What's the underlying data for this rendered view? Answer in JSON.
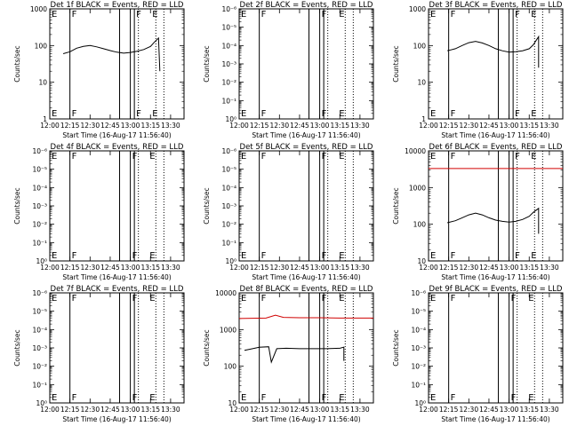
{
  "chart_data": [
    {
      "type": "line",
      "title": "Det 1f BLACK = Events, RED = LLD",
      "ylabel": "Counts/sec",
      "xlabel": "Start Time (16-Aug-17 11:56:40)",
      "xticks": [
        "12:00",
        "12:15",
        "12:30",
        "12:45",
        "13:00",
        "13:15",
        "13:30"
      ],
      "x_range": [
        "12:00",
        "13:40"
      ],
      "ylim": [
        1,
        1000
      ],
      "ytick_labels": [
        "1",
        "10",
        "100",
        "1000"
      ],
      "log_scale": true,
      "grid": false,
      "solid_lines": [
        "12:15",
        "12:52",
        "13:00",
        "13:03"
      ],
      "dotted_lines": [
        "13:06",
        "13:19",
        "13:25"
      ],
      "flags": [
        {
          "x": "12:00",
          "label": "E"
        },
        {
          "x": "12:15",
          "label": "F"
        },
        {
          "x": "13:03",
          "label": "F"
        },
        {
          "x": "13:15",
          "label": "E"
        }
      ],
      "series": [
        {
          "color": "#000000",
          "x": [
            "12:10",
            "12:15",
            "12:20",
            "12:25",
            "12:30",
            "12:35",
            "12:40",
            "12:45",
            "12:50",
            "12:55",
            "13:00",
            "13:05",
            "13:10",
            "13:15",
            "13:18",
            "13:21",
            "13:22"
          ],
          "values": [
            60,
            68,
            85,
            95,
            100,
            92,
            82,
            73,
            66,
            62,
            65,
            70,
            78,
            95,
            125,
            160,
            20
          ]
        }
      ]
    },
    {
      "type": "line",
      "title": "Det 2f BLACK = Events, RED = LLD",
      "ylabel": "Counts/sec",
      "xlabel": "Start Time (16-Aug-17 11:56:40)",
      "xticks": [
        "12:00",
        "12:15",
        "12:30",
        "12:45",
        "13:00",
        "13:15",
        "13:30"
      ],
      "x_range": [
        "12:00",
        "13:40"
      ],
      "ylim": [
        1,
        1000000
      ],
      "ytick_labels": [
        "10⁰",
        "10⁻¹",
        "10⁻²",
        "10⁻³",
        "10⁻⁴",
        "10⁻⁵",
        "10⁻⁶"
      ],
      "log_scale": true,
      "grid": false,
      "solid_lines": [
        "12:15",
        "12:52",
        "13:00",
        "13:03"
      ],
      "dotted_lines": [
        "13:06",
        "13:19",
        "13:25"
      ],
      "flags": [
        {
          "x": "12:00",
          "label": "E"
        },
        {
          "x": "12:15",
          "label": "F"
        },
        {
          "x": "13:00",
          "label": "F"
        },
        {
          "x": "13:13",
          "label": "E"
        }
      ],
      "series": []
    },
    {
      "type": "line",
      "title": "Det 3f BLACK = Events, RED = LLD",
      "ylabel": "Counts/sec",
      "xlabel": "Start Time (16-Aug-17 11:56:40)",
      "xticks": [
        "12:00",
        "12:15",
        "12:30",
        "12:45",
        "13:00",
        "13:15",
        "13:30"
      ],
      "x_range": [
        "12:00",
        "13:40"
      ],
      "ylim": [
        1,
        1000
      ],
      "ytick_labels": [
        "1",
        "10",
        "100",
        "1000"
      ],
      "log_scale": true,
      "grid": false,
      "solid_lines": [
        "12:15",
        "12:52",
        "13:00",
        "13:03"
      ],
      "dotted_lines": [
        "13:06",
        "13:19",
        "13:25"
      ],
      "flags": [
        {
          "x": "12:00",
          "label": "E"
        },
        {
          "x": "12:15",
          "label": "F"
        },
        {
          "x": "13:03",
          "label": "F"
        },
        {
          "x": "13:15",
          "label": "E"
        }
      ],
      "series": [
        {
          "color": "#000000",
          "x": [
            "12:14",
            "12:20",
            "12:25",
            "12:30",
            "12:35",
            "12:40",
            "12:45",
            "12:50",
            "12:55",
            "13:00",
            "13:05",
            "13:10",
            "13:15",
            "13:18",
            "13:22",
            "13:22"
          ],
          "values": [
            72,
            82,
            100,
            120,
            130,
            118,
            100,
            82,
            72,
            66,
            68,
            72,
            82,
            105,
            175,
            25
          ]
        }
      ]
    },
    {
      "type": "line",
      "title": "Det 4f BLACK = Events, RED = LLD",
      "ylabel": "Counts/sec",
      "xlabel": "Start Time (16-Aug-17 11:56:40)",
      "xticks": [
        "12:00",
        "12:15",
        "12:30",
        "12:45",
        "13:00",
        "13:15",
        "13:30"
      ],
      "x_range": [
        "12:00",
        "13:40"
      ],
      "ylim": [
        1,
        1000000
      ],
      "ytick_labels": [
        "10⁰",
        "10⁻¹",
        "10⁻²",
        "10⁻³",
        "10⁻⁴",
        "10⁻⁵",
        "10⁻⁶"
      ],
      "log_scale": true,
      "grid": false,
      "solid_lines": [
        "12:15",
        "12:52",
        "13:00",
        "13:03"
      ],
      "dotted_lines": [
        "13:06",
        "13:19",
        "13:25"
      ],
      "flags": [
        {
          "x": "12:00",
          "label": "E"
        },
        {
          "x": "12:15",
          "label": "F"
        },
        {
          "x": "13:00",
          "label": "F"
        },
        {
          "x": "13:13",
          "label": "E"
        }
      ],
      "series": []
    },
    {
      "type": "line",
      "title": "Det 5f BLACK = Events, RED = LLD",
      "ylabel": "Counts/sec",
      "xlabel": "Start Time (16-Aug-17 11:56:40)",
      "xticks": [
        "12:00",
        "12:15",
        "12:30",
        "12:45",
        "13:00",
        "13:15",
        "13:30"
      ],
      "x_range": [
        "12:00",
        "13:40"
      ],
      "ylim": [
        1,
        1000000
      ],
      "ytick_labels": [
        "10⁰",
        "10⁻¹",
        "10⁻²",
        "10⁻³",
        "10⁻⁴",
        "10⁻⁵",
        "10⁻⁶"
      ],
      "log_scale": true,
      "grid": false,
      "solid_lines": [
        "12:15",
        "12:52",
        "13:00",
        "13:03"
      ],
      "dotted_lines": [
        "13:06",
        "13:19",
        "13:25"
      ],
      "flags": [
        {
          "x": "12:00",
          "label": "E"
        },
        {
          "x": "12:15",
          "label": "F"
        },
        {
          "x": "13:00",
          "label": "F"
        },
        {
          "x": "13:13",
          "label": "E"
        }
      ],
      "series": []
    },
    {
      "type": "line",
      "title": "Det 6f BLACK = Events, RED = LLD",
      "ylabel": "Counts/sec",
      "xlabel": "Start Time (16-Aug-17 11:56:40)",
      "xticks": [
        "12:00",
        "12:15",
        "12:30",
        "12:45",
        "13:00",
        "13:15",
        "13:30"
      ],
      "x_range": [
        "12:00",
        "13:40"
      ],
      "ylim": [
        10,
        10000
      ],
      "ytick_labels": [
        "10",
        "100",
        "1000",
        "10000"
      ],
      "log_scale": true,
      "grid": false,
      "solid_lines": [
        "12:15",
        "12:52",
        "13:00",
        "13:03"
      ],
      "dotted_lines": [
        "13:06",
        "13:19",
        "13:25"
      ],
      "flags": [
        {
          "x": "12:00",
          "label": "E"
        },
        {
          "x": "12:15",
          "label": "F"
        },
        {
          "x": "13:03",
          "label": "F"
        },
        {
          "x": "13:15",
          "label": "E"
        }
      ],
      "series": [
        {
          "color": "#000000",
          "x": [
            "12:14",
            "12:20",
            "12:25",
            "12:30",
            "12:35",
            "12:40",
            "12:45",
            "12:50",
            "12:55",
            "13:00",
            "13:05",
            "13:10",
            "13:15",
            "13:18",
            "13:22",
            "13:22"
          ],
          "values": [
            110,
            125,
            150,
            180,
            200,
            180,
            150,
            130,
            120,
            115,
            120,
            135,
            165,
            210,
            270,
            55
          ]
        },
        {
          "color": "#d00000",
          "x": [
            "12:00",
            "13:40"
          ],
          "values": [
            3300,
            3300
          ]
        }
      ]
    },
    {
      "type": "line",
      "title": "Det 7f BLACK = Events, RED = LLD",
      "ylabel": "Counts/sec",
      "xlabel": "Start Time (16-Aug-17 11:56:40)",
      "xticks": [
        "12:00",
        "12:15",
        "12:30",
        "12:45",
        "13:00",
        "13:15",
        "13:30"
      ],
      "x_range": [
        "12:00",
        "13:40"
      ],
      "ylim": [
        1,
        1000000
      ],
      "ytick_labels": [
        "10⁰",
        "10⁻¹",
        "10⁻²",
        "10⁻³",
        "10⁻⁴",
        "10⁻⁵",
        "10⁻⁶"
      ],
      "log_scale": true,
      "grid": false,
      "solid_lines": [
        "12:15",
        "12:52",
        "13:00",
        "13:03"
      ],
      "dotted_lines": [
        "13:06",
        "13:19",
        "13:25"
      ],
      "flags": [
        {
          "x": "12:00",
          "label": "E"
        },
        {
          "x": "12:15",
          "label": "F"
        },
        {
          "x": "13:00",
          "label": "F"
        },
        {
          "x": "13:13",
          "label": "E"
        }
      ],
      "series": []
    },
    {
      "type": "line",
      "title": "Det 8f BLACK = Events, RED = LLD",
      "ylabel": "Counts/sec",
      "xlabel": "Start Time (16-Aug-17 11:56:40)",
      "xticks": [
        "12:00",
        "12:15",
        "12:30",
        "12:45",
        "13:00",
        "13:15",
        "13:30"
      ],
      "x_range": [
        "12:00",
        "13:40"
      ],
      "ylim": [
        10,
        10000
      ],
      "ytick_labels": [
        "10",
        "100",
        "1000",
        "10000"
      ],
      "log_scale": true,
      "grid": false,
      "solid_lines": [
        "12:15",
        "12:52",
        "13:00",
        "13:03"
      ],
      "dotted_lines": [
        "13:06",
        "13:19",
        "13:25"
      ],
      "flags": [
        {
          "x": "12:00",
          "label": "E"
        },
        {
          "x": "12:15",
          "label": "F"
        },
        {
          "x": "13:00",
          "label": "F"
        },
        {
          "x": "13:13",
          "label": "E"
        }
      ],
      "series": [
        {
          "color": "#000000",
          "x": [
            "12:04",
            "12:10",
            "12:15",
            "12:22",
            "12:24",
            "12:28",
            "12:35",
            "12:45",
            "12:55",
            "13:05",
            "13:15",
            "13:18",
            "13:18"
          ],
          "values": [
            270,
            300,
            330,
            340,
            130,
            300,
            310,
            300,
            300,
            300,
            310,
            330,
            140
          ]
        },
        {
          "color": "#d00000",
          "x": [
            "12:00",
            "12:20",
            "12:27",
            "12:33",
            "12:45",
            "13:00",
            "13:15",
            "13:40"
          ],
          "values": [
            2000,
            2050,
            2450,
            2150,
            2100,
            2100,
            2050,
            2050
          ]
        }
      ]
    },
    {
      "type": "line",
      "title": "Det 9f BLACK = Events, RED = LLD",
      "ylabel": "Counts/sec",
      "xlabel": "Start Time (16-Aug-17 11:56:40)",
      "xticks": [
        "12:00",
        "12:15",
        "12:30",
        "12:45",
        "13:00",
        "13:15",
        "13:30"
      ],
      "x_range": [
        "12:00",
        "13:40"
      ],
      "ylim": [
        1,
        1000000
      ],
      "ytick_labels": [
        "10⁰",
        "10⁻¹",
        "10⁻²",
        "10⁻³",
        "10⁻⁴",
        "10⁻⁵",
        "10⁻⁶"
      ],
      "log_scale": true,
      "grid": false,
      "solid_lines": [
        "12:15",
        "12:52",
        "13:00",
        "13:03"
      ],
      "dotted_lines": [
        "13:06",
        "13:19",
        "13:25"
      ],
      "flags": [
        {
          "x": "12:00",
          "label": "E"
        },
        {
          "x": "12:15",
          "label": "F"
        },
        {
          "x": "13:00",
          "label": "F"
        },
        {
          "x": "13:13",
          "label": "E"
        }
      ],
      "series": []
    }
  ]
}
